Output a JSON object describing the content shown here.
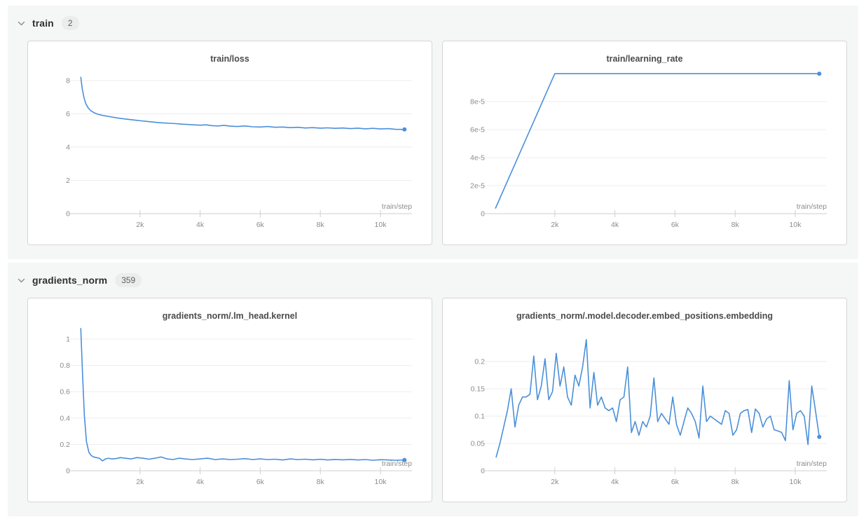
{
  "colors": {
    "line": "#4a90d9",
    "grid": "#ededed",
    "axis": "#cfcfcf",
    "tick_text": "#8c8c8c",
    "panel_bg": "#f5f6f6",
    "card_border": "#d6d6d6"
  },
  "chart_data": {
    "type": "line",
    "sections": [
      {
        "label": "train",
        "count": "2",
        "charts": [
          {
            "title": "train/loss",
            "xlabel": "train/step",
            "type": "line",
            "xlim": [
              0,
              11050
            ],
            "ylim": [
              0,
              8.59
            ],
            "yticks": [
              0,
              2,
              4,
              6,
              8
            ],
            "ytick_labels": [
              "0",
              "2",
              "4",
              "6",
              "8"
            ],
            "xticks": [
              2000,
              4000,
              6000,
              8000,
              10000
            ],
            "xtick_labels": [
              "2k",
              "4k",
              "6k",
              "8k",
              "10k"
            ],
            "end_marker": true,
            "x": [
              30,
              80,
              140,
              200,
              280,
              360,
              440,
              520,
              600,
              700,
              800,
              900,
              1000,
              1150,
              1300,
              1450,
              1600,
              1750,
              1900,
              2050,
              2200,
              2400,
              2600,
              2800,
              3000,
              3200,
              3400,
              3600,
              3800,
              4000,
              4200,
              4400,
              4600,
              4800,
              5000,
              5250,
              5500,
              5750,
              6000,
              6250,
              6500,
              6750,
              7000,
              7250,
              7500,
              7750,
              8000,
              8250,
              8500,
              8750,
              9000,
              9250,
              9500,
              9750,
              10000,
              10250,
              10500,
              10800
            ],
            "y": [
              8.2,
              7.5,
              6.95,
              6.6,
              6.35,
              6.2,
              6.1,
              6.03,
              5.98,
              5.93,
              5.89,
              5.86,
              5.83,
              5.78,
              5.74,
              5.7,
              5.67,
              5.64,
              5.61,
              5.58,
              5.55,
              5.51,
              5.48,
              5.45,
              5.43,
              5.41,
              5.38,
              5.36,
              5.34,
              5.32,
              5.34,
              5.29,
              5.27,
              5.31,
              5.26,
              5.24,
              5.27,
              5.22,
              5.21,
              5.24,
              5.19,
              5.21,
              5.17,
              5.19,
              5.15,
              5.17,
              5.14,
              5.16,
              5.13,
              5.15,
              5.11,
              5.14,
              5.1,
              5.13,
              5.09,
              5.11,
              5.07,
              5.06
            ]
          },
          {
            "title": "train/learning_rate",
            "xlabel": "train/step",
            "type": "line",
            "xlim": [
              0,
              11050
            ],
            "ylim": [
              0,
              0.000102
            ],
            "yticks": [
              0,
              2e-05,
              4e-05,
              6e-05,
              8e-05
            ],
            "ytick_labels": [
              "0",
              "2e-5",
              "4e-5",
              "6e-5",
              "8e-5"
            ],
            "xticks": [
              2000,
              4000,
              6000,
              8000,
              10000
            ],
            "xtick_labels": [
              "2k",
              "4k",
              "6k",
              "8k",
              "10k"
            ],
            "end_marker": true,
            "x": [
              30,
              2000,
              10800
            ],
            "y": [
              4e-06,
              9.99e-05,
              9.99e-05
            ]
          }
        ]
      },
      {
        "label": "gradients_norm",
        "count": "359",
        "charts": [
          {
            "title": "gradients_norm/.lm_head.kernel",
            "xlabel": "train/step",
            "type": "line",
            "xlim": [
              0,
              11050
            ],
            "ylim": [
              0,
              1.085
            ],
            "yticks": [
              0,
              0.2,
              0.4,
              0.6,
              0.8,
              1
            ],
            "ytick_labels": [
              "0",
              "0.2",
              "0.4",
              "0.6",
              "0.8",
              "1"
            ],
            "xticks": [
              2000,
              4000,
              6000,
              8000,
              10000
            ],
            "xtick_labels": [
              "2k",
              "4k",
              "6k",
              "8k",
              "10k"
            ],
            "end_marker": true,
            "x": [
              30,
              90,
              150,
              220,
              300,
              380,
              460,
              550,
              650,
              750,
              850,
              950,
              1050,
              1200,
              1350,
              1500,
              1700,
              1900,
              2100,
              2300,
              2500,
              2700,
              2900,
              3100,
              3300,
              3500,
              3750,
              4000,
              4250,
              4500,
              4750,
              5000,
              5250,
              5500,
              5750,
              6000,
              6250,
              6500,
              6750,
              7000,
              7250,
              7500,
              7750,
              8000,
              8250,
              8500,
              8750,
              9000,
              9250,
              9500,
              9750,
              10000,
              10250,
              10500,
              10800
            ],
            "y": [
              1.08,
              0.72,
              0.42,
              0.22,
              0.14,
              0.115,
              0.105,
              0.1,
              0.095,
              0.075,
              0.09,
              0.095,
              0.09,
              0.092,
              0.1,
              0.095,
              0.09,
              0.1,
              0.095,
              0.088,
              0.095,
              0.105,
              0.09,
              0.085,
              0.095,
              0.09,
              0.085,
              0.09,
              0.095,
              0.085,
              0.09,
              0.085,
              0.088,
              0.092,
              0.085,
              0.09,
              0.085,
              0.088,
              0.082,
              0.09,
              0.085,
              0.088,
              0.083,
              0.087,
              0.082,
              0.086,
              0.083,
              0.086,
              0.082,
              0.085,
              0.08,
              0.084,
              0.082,
              0.08,
              0.082
            ]
          },
          {
            "title": "gradients_norm/.model.decoder.embed_positions.embedding",
            "xlabel": "train/step",
            "type": "line",
            "xlim": [
              0,
              11050
            ],
            "ylim": [
              0,
              0.2615
            ],
            "yticks": [
              0,
              0.05,
              0.1,
              0.15,
              0.2
            ],
            "ytick_labels": [
              "0",
              "0.05",
              "0.1",
              "0.15",
              "0.2"
            ],
            "xticks": [
              2000,
              4000,
              6000,
              8000,
              10000
            ],
            "xtick_labels": [
              "2k",
              "4k",
              "6k",
              "8k",
              "10k"
            ],
            "end_marker": true,
            "x": [
              50,
              175,
              300,
              425,
              550,
              675,
              800,
              925,
              1050,
              1175,
              1300,
              1425,
              1550,
              1675,
              1800,
              1925,
              2050,
              2175,
              2300,
              2425,
              2550,
              2675,
              2800,
              2925,
              3050,
              3175,
              3300,
              3425,
              3550,
              3675,
              3800,
              3925,
              4050,
              4175,
              4300,
              4425,
              4550,
              4675,
              4800,
              4925,
              5050,
              5175,
              5300,
              5425,
              5550,
              5675,
              5800,
              5925,
              6050,
              6175,
              6300,
              6425,
              6550,
              6675,
              6800,
              6925,
              7050,
              7175,
              7300,
              7425,
              7550,
              7675,
              7800,
              7925,
              8050,
              8175,
              8300,
              8425,
              8550,
              8675,
              8800,
              8925,
              9050,
              9175,
              9300,
              9425,
              9550,
              9675,
              9800,
              9925,
              10050,
              10175,
              10300,
              10425,
              10550,
              10675,
              10800
            ],
            "y": [
              0.025,
              0.05,
              0.08,
              0.11,
              0.15,
              0.08,
              0.12,
              0.135,
              0.135,
              0.14,
              0.21,
              0.13,
              0.155,
              0.205,
              0.13,
              0.145,
              0.215,
              0.155,
              0.19,
              0.135,
              0.12,
              0.175,
              0.155,
              0.19,
              0.24,
              0.115,
              0.18,
              0.12,
              0.135,
              0.115,
              0.11,
              0.115,
              0.09,
              0.13,
              0.135,
              0.19,
              0.07,
              0.09,
              0.065,
              0.09,
              0.08,
              0.1,
              0.17,
              0.09,
              0.105,
              0.095,
              0.085,
              0.135,
              0.085,
              0.065,
              0.09,
              0.115,
              0.105,
              0.09,
              0.06,
              0.155,
              0.09,
              0.1,
              0.095,
              0.09,
              0.085,
              0.11,
              0.105,
              0.065,
              0.075,
              0.105,
              0.11,
              0.112,
              0.07,
              0.113,
              0.105,
              0.08,
              0.095,
              0.1,
              0.075,
              0.073,
              0.07,
              0.055,
              0.165,
              0.075,
              0.105,
              0.11,
              0.1,
              0.048,
              0.155,
              0.11,
              0.062
            ]
          }
        ]
      }
    ]
  }
}
